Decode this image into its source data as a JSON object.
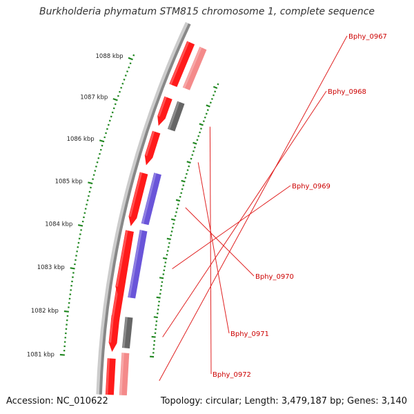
{
  "title": "Burkholderia phymatum STM815 chromosome 1, complete sequence",
  "footer": {
    "accession_label": "Accession:",
    "accession": "NC_010622",
    "topology_label": "Topology:",
    "topology": "circular",
    "length_label": "Length:",
    "length": "3,479,187 bp",
    "genes_label": "Genes:",
    "genes": "3,140"
  },
  "ticks": [
    "1081 kbp",
    "1082 kbp",
    "1083 kbp",
    "1084 kbp",
    "1085 kbp",
    "1086 kbp",
    "1087 kbp",
    "1088 kbp"
  ],
  "genes": [
    {
      "label": "Bphy_0967"
    },
    {
      "label": "Bphy_0968"
    },
    {
      "label": "Bphy_0969"
    },
    {
      "label": "Bphy_0970"
    },
    {
      "label": "Bphy_0971"
    },
    {
      "label": "Bphy_0972"
    }
  ],
  "colors": {
    "gene_red": "#ff1a1a",
    "gene_pink": "#f48a8a",
    "gene_purple": "#6a55d9",
    "gene_gray": "#666666",
    "backbone": "#888888",
    "tick_green": "#228822",
    "label_red": "#cc0000"
  }
}
